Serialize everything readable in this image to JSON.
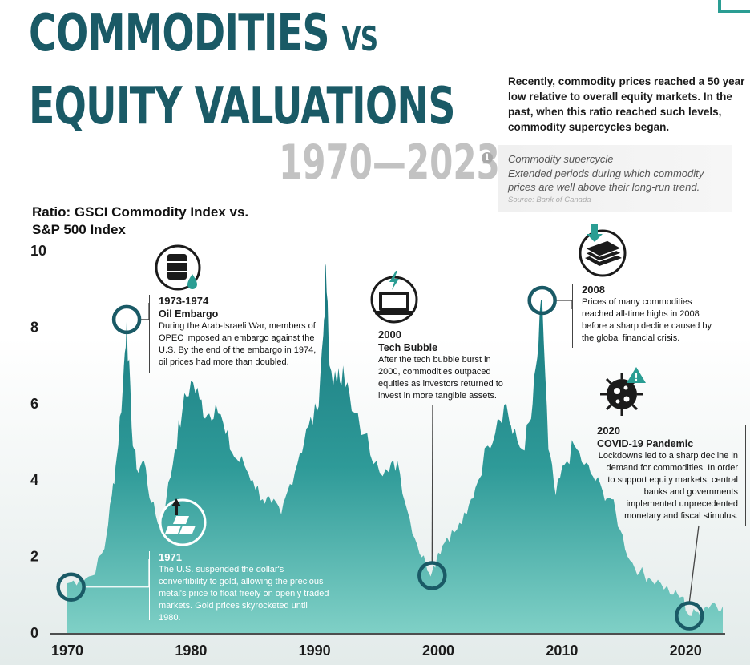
{
  "header": {
    "title_line1": "COMMODITIES",
    "title_vs": "VS",
    "title_line2": "EQUITY VALUATIONS",
    "years": "1970—2023",
    "intro": "Recently, commodity prices reached a 50 year low relative to overall equity markets. In the past, when this ratio reached such levels, commodity supercycles began."
  },
  "definition": {
    "icon": "info-icon",
    "title": "Commodity supercycle",
    "text": "Extended periods during which commodity prices are well above their long-run trend.",
    "source": "Source: Bank of Canada"
  },
  "colors": {
    "accent": "#1a5a66",
    "area_top": "#1a7d84",
    "area_bottom": "#6cc4bb",
    "highlight": "#2a9d93"
  },
  "annotations": {
    "a1971": {
      "year": "1971",
      "icon": "gold-bars-arrow-up-icon",
      "text": "The U.S. suspended the dollar's convertibility to gold, allowing the precious metal's price to float freely on openly traded markets. Gold prices skyrocketed until 1980."
    },
    "a1973": {
      "year": "1973-1974",
      "name": "Oil Embargo",
      "icon": "oil-barrel-icon",
      "text": "During the Arab-Israeli War, members of OPEC imposed an embargo against the U.S. By the end of the embargo in 1974, oil prices had more than doubled."
    },
    "a2000": {
      "year": "2000",
      "name": "Tech Bubble",
      "icon": "laptop-lightning-icon",
      "text": "After the tech bubble burst in 2000, commodities outpaced equities as investors returned to invest in more tangible assets."
    },
    "a2008": {
      "year": "2008",
      "icon": "money-stack-down-icon",
      "text": "Prices of many commodities reached all-time highs in 2008 before a sharp decline caused by the global financial crisis."
    },
    "a2020": {
      "year": "2020",
      "name": "COVID-19 Pandemic",
      "icon": "virus-warning-icon",
      "text": "Lockdowns led to a sharp decline in demand for commodities. In order to support equity markets, central banks and governments implemented unprecedented monetary and fiscal stimulus."
    }
  },
  "chart_data": {
    "type": "area",
    "title": "",
    "ylabel": "Ratio: GSCI Commodity Index vs. S&P 500 Index",
    "xlabel": "",
    "xlim": [
      1970,
      2023
    ],
    "ylim": [
      0,
      10
    ],
    "x_ticks": [
      "1970",
      "1980",
      "1990",
      "2000",
      "2010",
      "2020"
    ],
    "y_ticks": [
      "0",
      "2",
      "4",
      "6",
      "8",
      "10"
    ],
    "grid": false,
    "series": [
      {
        "values": [
          [
            1970,
            1.3
          ],
          [
            1971,
            1.4
          ],
          [
            1972,
            1.5
          ],
          [
            1973,
            2.2
          ],
          [
            1973.6,
            3.6
          ],
          [
            1974,
            4.6
          ],
          [
            1974.5,
            6.5
          ],
          [
            1974.8,
            8.2
          ],
          [
            1975.2,
            5.4
          ],
          [
            1975.6,
            4.3
          ],
          [
            1976.2,
            4.5
          ],
          [
            1976.8,
            3.4
          ],
          [
            1977.5,
            2.8
          ],
          [
            1978,
            3.5
          ],
          [
            1978.7,
            4.8
          ],
          [
            1979.3,
            5.8
          ],
          [
            1980,
            6.6
          ],
          [
            1980.7,
            6.1
          ],
          [
            1981.3,
            5.7
          ],
          [
            1982,
            6.0
          ],
          [
            1982.8,
            5.2
          ],
          [
            1983.5,
            4.6
          ],
          [
            1984.3,
            4.4
          ],
          [
            1985,
            4.0
          ],
          [
            1985.8,
            3.5
          ],
          [
            1986.5,
            3.4
          ],
          [
            1987.3,
            3.1
          ],
          [
            1988,
            3.9
          ],
          [
            1988.8,
            4.7
          ],
          [
            1989.5,
            5.4
          ],
          [
            1990.2,
            5.8
          ],
          [
            1990.7,
            7.8
          ],
          [
            1990.9,
            9.6
          ],
          [
            1991.2,
            7.0
          ],
          [
            1991.8,
            6.5
          ],
          [
            1992.3,
            7.0
          ],
          [
            1993,
            5.8
          ],
          [
            1994,
            5.2
          ],
          [
            1995,
            4.5
          ],
          [
            1996,
            4.2
          ],
          [
            1996.7,
            4.5
          ],
          [
            1997.5,
            3.2
          ],
          [
            1998.3,
            2.3
          ],
          [
            1999,
            1.8
          ],
          [
            1999.5,
            1.6
          ],
          [
            2000,
            2.1
          ],
          [
            2000.7,
            2.5
          ],
          [
            2001.5,
            2.7
          ],
          [
            2002.3,
            3.1
          ],
          [
            2003,
            3.8
          ],
          [
            2004,
            4.9
          ],
          [
            2004.8,
            5.6
          ],
          [
            2005.5,
            6.0
          ],
          [
            2006,
            5.2
          ],
          [
            2006.8,
            4.8
          ],
          [
            2007.5,
            5.6
          ],
          [
            2008,
            7.2
          ],
          [
            2008.4,
            8.7
          ],
          [
            2008.9,
            4.8
          ],
          [
            2009.5,
            3.6
          ],
          [
            2010.2,
            4.4
          ],
          [
            2011,
            4.9
          ],
          [
            2011.8,
            4.4
          ],
          [
            2012.5,
            4.1
          ],
          [
            2013.3,
            3.7
          ],
          [
            2014,
            3.5
          ],
          [
            2014.7,
            2.7
          ],
          [
            2015.5,
            1.9
          ],
          [
            2016.3,
            1.6
          ],
          [
            2017,
            1.45
          ],
          [
            2018,
            1.3
          ],
          [
            2019,
            1.0
          ],
          [
            2019.7,
            0.95
          ],
          [
            2020.3,
            0.45
          ],
          [
            2021,
            0.55
          ],
          [
            2021.7,
            0.7
          ],
          [
            2022.3,
            0.8
          ],
          [
            2023,
            0.7
          ]
        ]
      }
    ]
  }
}
